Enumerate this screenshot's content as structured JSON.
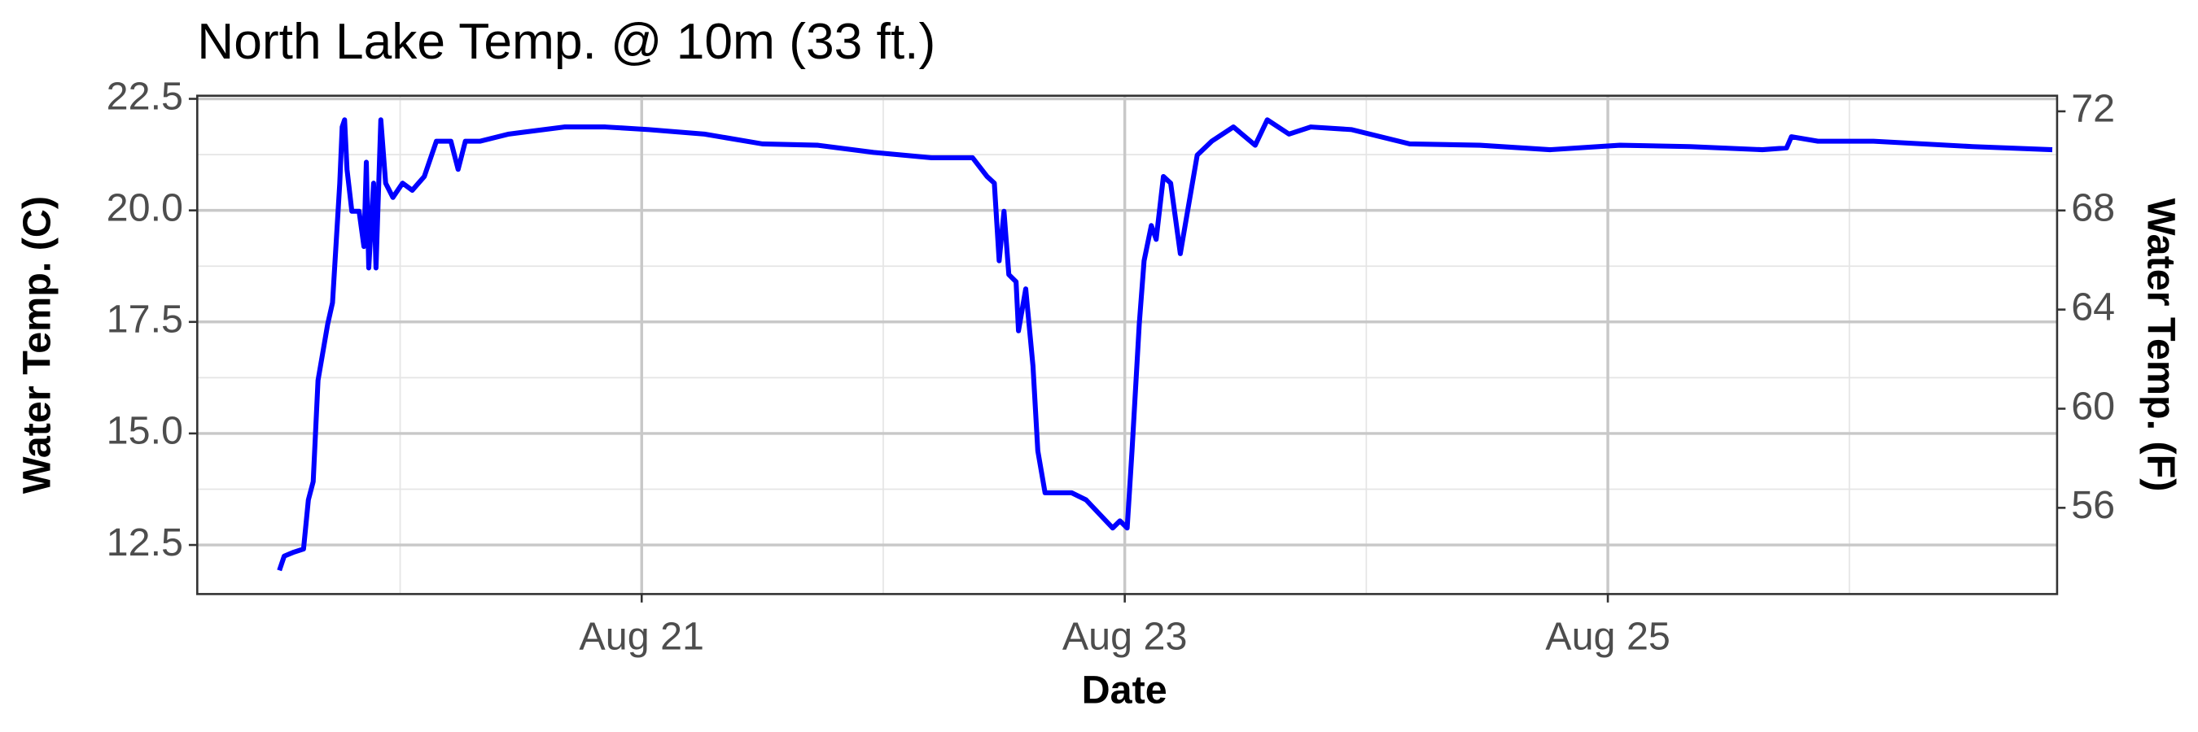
{
  "chart_data": {
    "type": "line",
    "title": "North Lake Temp. @ 10m (33 ft.)",
    "xlabel": "Date",
    "ylabel": "Water Temp. (C)",
    "y2label": "Water Temp. (F)",
    "x": [
      19.5,
      19.52,
      19.56,
      19.6,
      19.62,
      19.64,
      19.66,
      19.7,
      19.72,
      19.75,
      19.76,
      19.77,
      19.78,
      19.8,
      19.83,
      19.85,
      19.86,
      19.87,
      19.89,
      19.9,
      19.92,
      19.94,
      19.97,
      20.01,
      20.05,
      20.1,
      20.15,
      20.21,
      20.24,
      20.27,
      20.33,
      20.45,
      20.68,
      20.85,
      21.03,
      21.26,
      21.5,
      21.73,
      21.96,
      22.2,
      22.37,
      22.43,
      22.46,
      22.48,
      22.5,
      22.52,
      22.55,
      22.56,
      22.59,
      22.62,
      22.64,
      22.67,
      22.72,
      22.78,
      22.84,
      22.95,
      22.98,
      23.01,
      23.03,
      23.06,
      23.08,
      23.11,
      23.13,
      23.16,
      23.19,
      23.23,
      23.26,
      23.3,
      23.36,
      23.45,
      23.54,
      23.59,
      23.68,
      23.77,
      23.94,
      24.18,
      24.47,
      24.76,
      25.05,
      25.34,
      25.64,
      25.74,
      25.76,
      25.87,
      26.1,
      26.51,
      26.84
    ],
    "series": [
      {
        "name": "Water Temp. (C)",
        "color": "#0000ff",
        "values": [
          11.93,
          12.25,
          12.34,
          12.41,
          13.51,
          13.92,
          16.19,
          17.45,
          17.93,
          20.61,
          21.87,
          22.03,
          20.92,
          19.98,
          19.98,
          19.19,
          21.08,
          18.71,
          20.61,
          18.71,
          22.03,
          20.61,
          20.29,
          20.61,
          20.45,
          20.76,
          21.55,
          21.55,
          20.92,
          21.55,
          21.55,
          21.71,
          21.87,
          21.87,
          21.81,
          21.71,
          21.49,
          21.46,
          21.3,
          21.18,
          21.18,
          20.76,
          20.61,
          18.87,
          19.98,
          18.56,
          18.4,
          17.3,
          18.24,
          16.51,
          14.61,
          13.67,
          13.67,
          13.67,
          13.51,
          12.88,
          13.04,
          12.88,
          14.61,
          17.45,
          18.87,
          19.66,
          19.35,
          20.76,
          20.61,
          19.03,
          19.98,
          21.24,
          21.55,
          21.87,
          21.46,
          22.03,
          21.71,
          21.87,
          21.81,
          21.49,
          21.46,
          21.36,
          21.46,
          21.43,
          21.36,
          21.4,
          21.65,
          21.55,
          21.55,
          21.43,
          21.36
        ]
      }
    ],
    "xlim": [
      19.16,
      26.86
    ],
    "xticks": [
      {
        "value": 21,
        "label": "Aug 21"
      },
      {
        "value": 23,
        "label": "Aug 23"
      },
      {
        "value": 25,
        "label": "Aug 25"
      }
    ],
    "ylim": [
      11.4,
      22.57
    ],
    "yticks": [
      {
        "value": 12.5,
        "label": "12.5"
      },
      {
        "value": 15,
        "label": "15.0"
      },
      {
        "value": 17.5,
        "label": "17.5"
      },
      {
        "value": 20,
        "label": "20.0"
      },
      {
        "value": 22.5,
        "label": "22.5"
      }
    ],
    "y2lim": [
      52.52,
      72.63
    ],
    "y2ticks": [
      56,
      60,
      64,
      68,
      72
    ],
    "grid": true
  }
}
